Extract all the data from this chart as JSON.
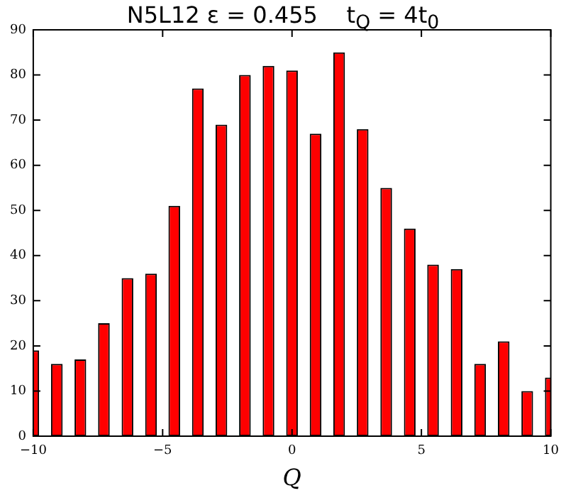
{
  "chart_data": {
    "type": "bar",
    "title": "N5L12 ε = 0.455    t$_{Q}$ = 4t$_{0}$",
    "xlabel": "Q",
    "x": [
      -10,
      -9.09,
      -8.18,
      -7.27,
      -6.36,
      -5.45,
      -4.55,
      -3.64,
      -2.73,
      -1.82,
      -0.91,
      0,
      0.91,
      1.82,
      2.73,
      3.64,
      4.55,
      5.45,
      6.36,
      7.27,
      8.18,
      9.09,
      10
    ],
    "values": [
      19,
      16,
      17,
      25,
      35,
      36,
      51,
      77,
      69,
      80,
      82,
      81,
      67,
      85,
      68,
      55,
      46,
      38,
      37,
      16,
      21,
      10,
      13
    ],
    "color": "#ff0000",
    "xlim": [
      -10,
      10
    ],
    "xticks": [
      {
        "value": -10,
        "label": "−10"
      },
      {
        "value": -5,
        "label": "−5"
      },
      0,
      5,
      10
    ],
    "ylim": [
      0,
      90
    ],
    "yticks": [
      0,
      10,
      20,
      30,
      40,
      50,
      60,
      70,
      80,
      90
    ],
    "grid": false,
    "legend": false
  }
}
